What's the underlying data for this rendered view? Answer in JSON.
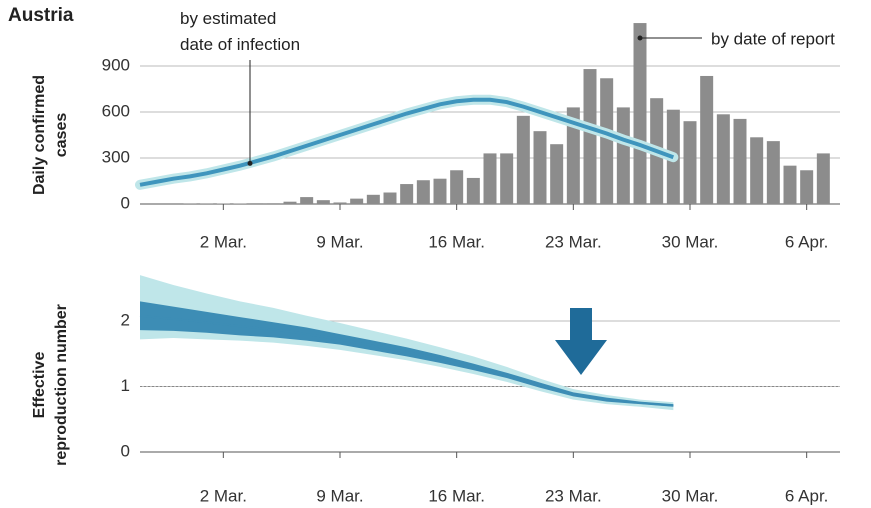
{
  "chart_data": [
    {
      "type": "bar",
      "title": "Austria",
      "ylabel": [
        "Daily confirmed",
        "cases"
      ],
      "xlim": [
        -3,
        39
      ],
      "xticks": [
        {
          "value": 2,
          "label": "2 Mar."
        },
        {
          "value": 9,
          "label": "9 Mar."
        },
        {
          "value": 16,
          "label": "16 Mar."
        },
        {
          "value": 23,
          "label": "23 Mar."
        },
        {
          "value": 30,
          "label": "30 Mar."
        },
        {
          "value": 37,
          "label": "6 Apr."
        }
      ],
      "ylim": [
        0,
        1250
      ],
      "yticks": [
        0,
        300,
        600,
        900
      ],
      "grid": true,
      "series": [
        {
          "name": "by date of report",
          "color": "#8c8c8c",
          "x": [
            0,
            1,
            2,
            3,
            4,
            5,
            6,
            7,
            8,
            9,
            10,
            11,
            12,
            13,
            14,
            15,
            16,
            17,
            18,
            19,
            20,
            21,
            22,
            23,
            24,
            25,
            26,
            27,
            28,
            29,
            30,
            31,
            32,
            33,
            34,
            35,
            36,
            37,
            38
          ],
          "values": [
            2,
            2,
            3,
            3,
            5,
            5,
            15,
            45,
            25,
            10,
            35,
            60,
            75,
            130,
            155,
            165,
            220,
            170,
            330,
            330,
            575,
            475,
            390,
            630,
            880,
            820,
            630,
            1180,
            690,
            615,
            540,
            835,
            585,
            555,
            435,
            410,
            250,
            220,
            330
          ]
        },
        {
          "name": "by estimated date of infection",
          "type": "line",
          "color": "#3f95bd",
          "x": [
            -3,
            -2,
            -1,
            0,
            1,
            2,
            3,
            4,
            5,
            6,
            7,
            8,
            9,
            10,
            11,
            12,
            13,
            14,
            15,
            16,
            17,
            18,
            19,
            20,
            21,
            22,
            23,
            24,
            25,
            26,
            27,
            28,
            29
          ],
          "values": [
            125,
            145,
            165,
            180,
            200,
            225,
            250,
            280,
            310,
            345,
            380,
            415,
            450,
            485,
            520,
            555,
            590,
            620,
            650,
            670,
            680,
            680,
            665,
            635,
            600,
            565,
            530,
            495,
            460,
            420,
            385,
            345,
            305
          ]
        }
      ]
    },
    {
      "type": "line",
      "ylabel": [
        "Effective",
        "reproduction number"
      ],
      "xlim": [
        -3,
        39
      ],
      "xticks": [
        {
          "value": 2,
          "label": "2 Mar."
        },
        {
          "value": 9,
          "label": "9 Mar."
        },
        {
          "value": 16,
          "label": "16 Mar."
        },
        {
          "value": 23,
          "label": "23 Mar."
        },
        {
          "value": 30,
          "label": "30 Mar."
        },
        {
          "value": 37,
          "label": "6 Apr."
        }
      ],
      "ylim": [
        0,
        2.8
      ],
      "yticks": [
        0,
        1,
        2
      ],
      "grid": true,
      "hline": 1,
      "x": [
        -3,
        -1,
        1,
        3,
        5,
        7,
        9,
        11,
        13,
        15,
        17,
        19,
        21,
        23,
        25,
        27,
        29
      ],
      "bands": [
        {
          "color": "#bfe6e9",
          "upper": [
            2.7,
            2.55,
            2.42,
            2.3,
            2.2,
            2.08,
            1.97,
            1.85,
            1.73,
            1.6,
            1.46,
            1.3,
            1.12,
            0.96,
            0.87,
            0.8,
            0.76
          ],
          "lower": [
            1.72,
            1.74,
            1.72,
            1.7,
            1.67,
            1.62,
            1.56,
            1.48,
            1.4,
            1.3,
            1.19,
            1.07,
            0.93,
            0.8,
            0.73,
            0.69,
            0.64
          ]
        },
        {
          "color": "#3d8db5",
          "upper": [
            2.3,
            2.22,
            2.14,
            2.06,
            1.98,
            1.9,
            1.8,
            1.7,
            1.6,
            1.48,
            1.35,
            1.21,
            1.06,
            0.91,
            0.83,
            0.77,
            0.73
          ],
          "lower": [
            1.86,
            1.85,
            1.82,
            1.78,
            1.75,
            1.7,
            1.64,
            1.55,
            1.46,
            1.36,
            1.25,
            1.13,
            0.98,
            0.85,
            0.77,
            0.73,
            0.69
          ]
        }
      ],
      "series": [
        {
          "color": "#3d8db5",
          "values": [
            2.08,
            2.03,
            1.98,
            1.92,
            1.87,
            1.8,
            1.72,
            1.62,
            1.53,
            1.42,
            1.3,
            1.17,
            1.02,
            0.88,
            0.8,
            0.75,
            0.71
          ]
        }
      ]
    }
  ]
}
